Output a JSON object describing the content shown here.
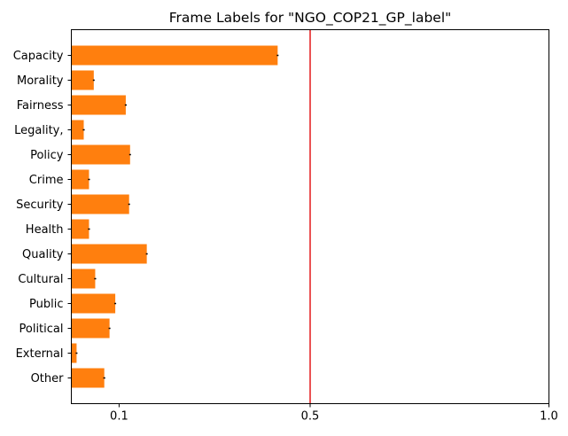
{
  "chart_data": {
    "type": "bar",
    "orientation": "horizontal",
    "title": "Frame Labels for \"NGO_COP21_GP_label\"",
    "xlabel": "",
    "ylabel": "",
    "xlim": [
      0.0,
      1.0
    ],
    "xticks": [
      0.1,
      0.5,
      1.0
    ],
    "xtick_labels": [
      "0.1",
      "0.5",
      "1.0"
    ],
    "categories": [
      "Capacity",
      "Morality",
      "Fairness",
      "Legality,",
      "Policy",
      "Crime",
      "Security",
      "Health",
      "Quality",
      "Cultural",
      "Public",
      "Political",
      "External",
      "Other"
    ],
    "values": [
      0.432,
      0.047,
      0.114,
      0.026,
      0.123,
      0.037,
      0.121,
      0.037,
      0.158,
      0.05,
      0.092,
      0.08,
      0.011,
      0.069
    ],
    "errors": [
      0.0,
      0.0,
      0.002,
      0.002,
      0.001,
      0.002,
      0.001,
      0.002,
      0.0,
      0.002,
      0.0,
      0.001,
      0.0,
      0.002
    ],
    "reference_line": {
      "x": 0.5,
      "color": "#e41a1c"
    },
    "bar_color": "#ff7f0e",
    "grid": false,
    "legend": "none"
  }
}
